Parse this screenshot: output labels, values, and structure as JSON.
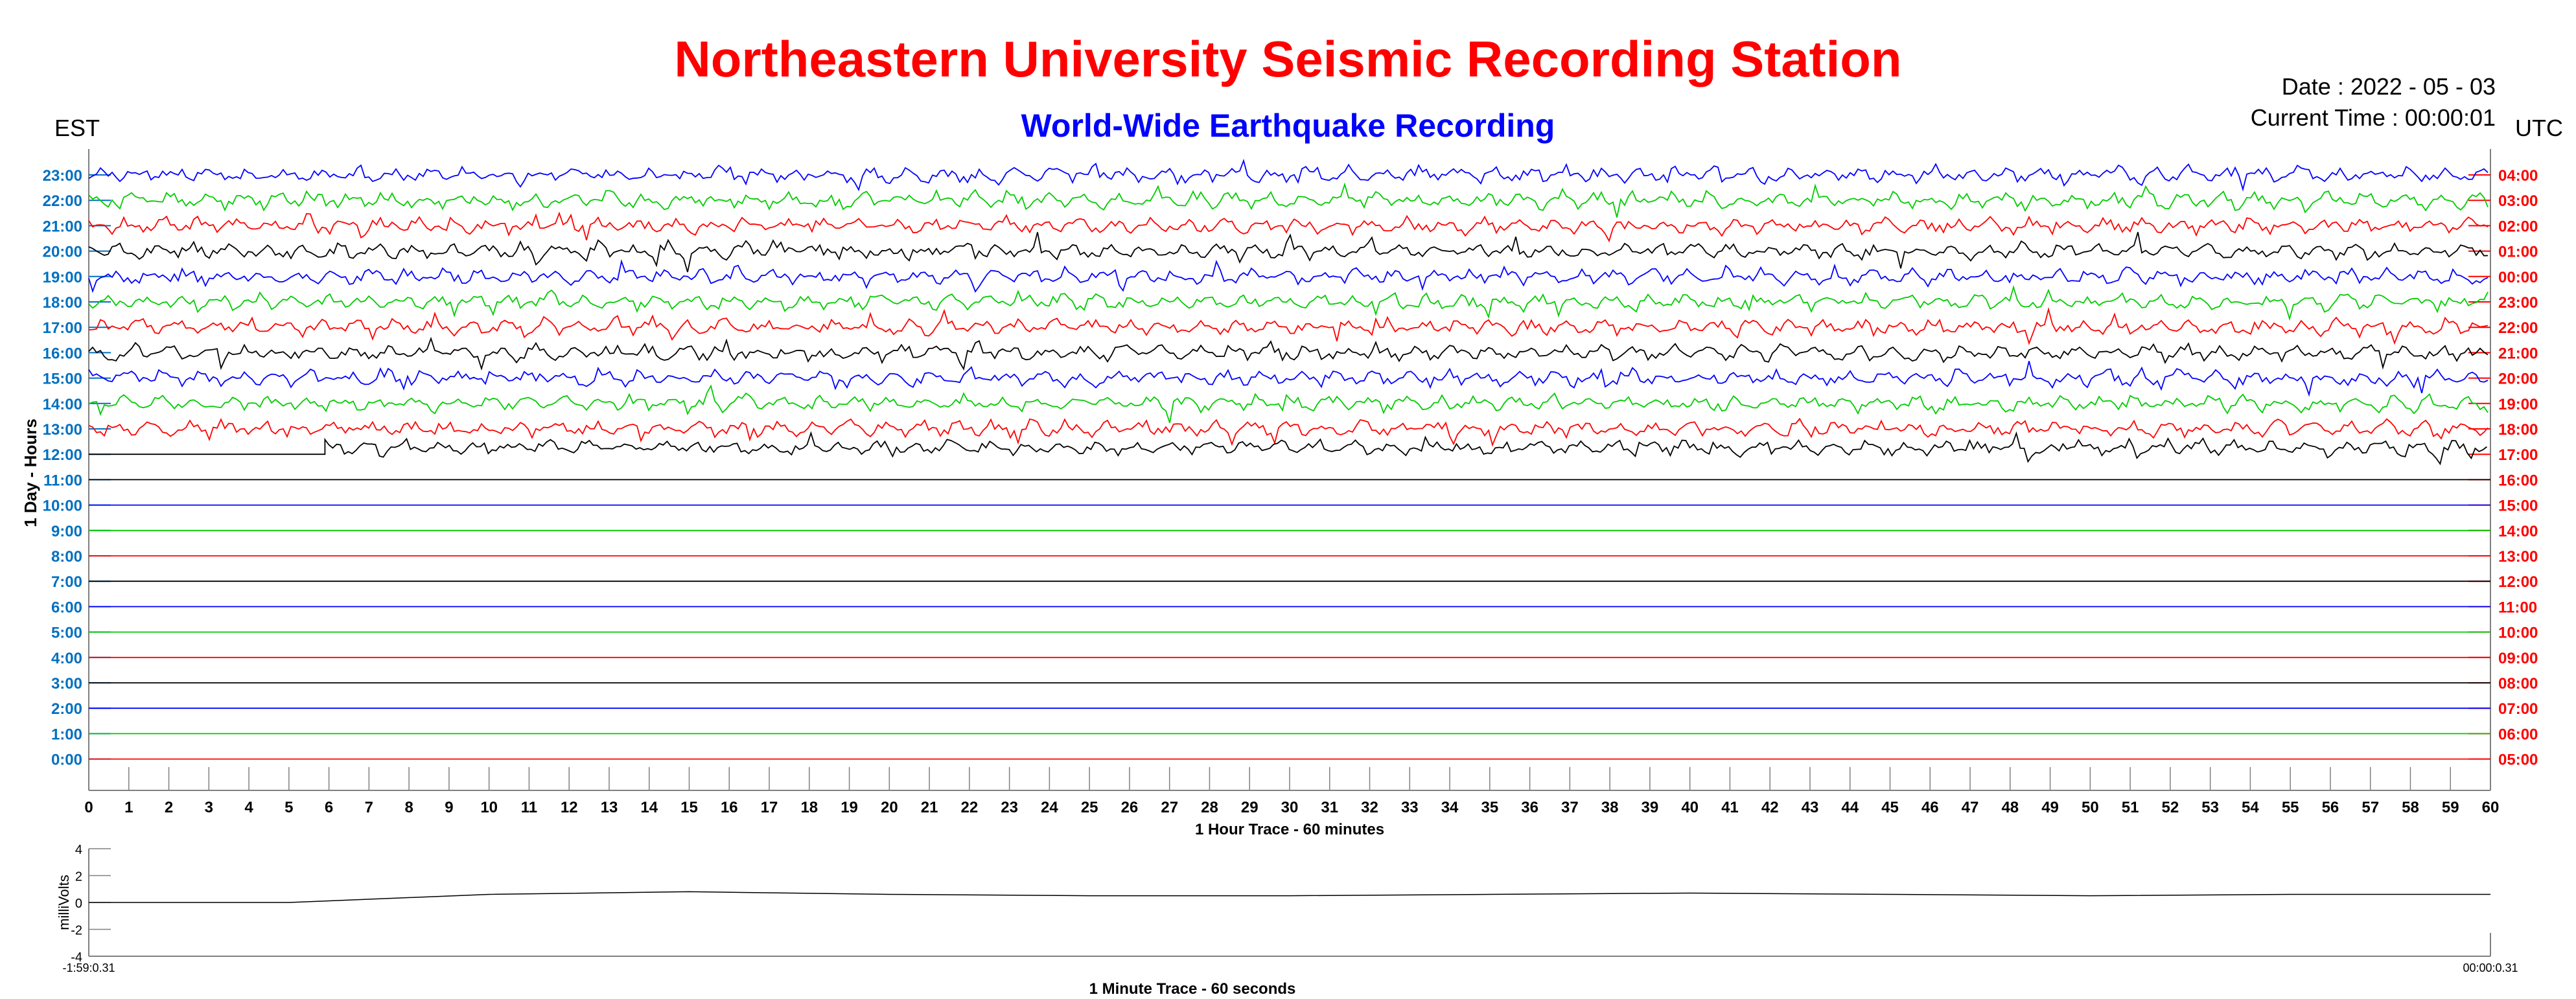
{
  "header": {
    "title": "Northeastern University Seismic Recording Station",
    "subtitle": "World-Wide Earthquake Recording",
    "date": "Date : 2022 - 05 - 03",
    "current_time": "Current Time : 00:00:01",
    "left_timezone": "EST",
    "right_timezone": "UTC"
  },
  "colors": {
    "title": "#ff0000",
    "subtitle": "#0000ff",
    "left_ticks": "#0070c0",
    "right_ticks": "#ff0000",
    "trace_cycle": [
      "#000000",
      "#ff0000",
      "#00cc00",
      "#0000ff"
    ]
  },
  "chart_data": [
    {
      "type": "line",
      "title": "",
      "ylabel": "1 Day - Hours",
      "xlabel": "1 Hour Trace - 60 minutes",
      "x_ticks": [
        "0",
        "1",
        "2",
        "3",
        "4",
        "5",
        "6",
        "7",
        "8",
        "9",
        "10",
        "11",
        "12",
        "13",
        "14",
        "15",
        "16",
        "17",
        "18",
        "19",
        "20",
        "21",
        "22",
        "23",
        "24",
        "25",
        "26",
        "27",
        "28",
        "29",
        "30",
        "31",
        "32",
        "33",
        "34",
        "35",
        "36",
        "37",
        "38",
        "39",
        "40",
        "41",
        "42",
        "43",
        "44",
        "45",
        "46",
        "47",
        "48",
        "49",
        "50",
        "51",
        "52",
        "53",
        "54",
        "55",
        "56",
        "57",
        "58",
        "59",
        "60"
      ],
      "xlim": [
        0,
        60
      ],
      "left_hours": [
        "23:00",
        "22:00",
        "21:00",
        "20:00",
        "19:00",
        "18:00",
        "17:00",
        "16:00",
        "15:00",
        "14:00",
        "13:00",
        "12:00",
        "11:00",
        "10:00",
        "9:00",
        "8:00",
        "7:00",
        "6:00",
        "5:00",
        "4:00",
        "3:00",
        "2:00",
        "1:00",
        "0:00"
      ],
      "right_hours": [
        "04:00",
        "03:00",
        "02:00",
        "01:00",
        "00:00",
        "23:00",
        "22:00",
        "21:00",
        "20:00",
        "19:00",
        "18:00",
        "17:00",
        "16:00",
        "15:00",
        "14:00",
        "13:00",
        "12:00",
        "11:00",
        "10:00",
        "09:00",
        "08:00",
        "07:00",
        "06:00",
        "05:00"
      ],
      "rows": [
        {
          "hour": "23:00",
          "color": "#0000ff",
          "active": true
        },
        {
          "hour": "22:00",
          "color": "#00cc00",
          "active": true
        },
        {
          "hour": "21:00",
          "color": "#ff0000",
          "active": true
        },
        {
          "hour": "20:00",
          "color": "#000000",
          "active": true
        },
        {
          "hour": "19:00",
          "color": "#0000ff",
          "active": true
        },
        {
          "hour": "18:00",
          "color": "#00cc00",
          "active": true
        },
        {
          "hour": "17:00",
          "color": "#ff0000",
          "active": true
        },
        {
          "hour": "16:00",
          "color": "#000000",
          "active": true
        },
        {
          "hour": "15:00",
          "color": "#0000ff",
          "active": true
        },
        {
          "hour": "14:00",
          "color": "#00cc00",
          "active": true
        },
        {
          "hour": "13:00",
          "color": "#ff0000",
          "active": true
        },
        {
          "hour": "12:00",
          "color": "#000000",
          "active": true,
          "signal_start_minute": 5.9
        },
        {
          "hour": "11:00",
          "color": "#000000",
          "active": false
        },
        {
          "hour": "10:00",
          "color": "#0000ff",
          "active": false
        },
        {
          "hour": "9:00",
          "color": "#00cc00",
          "active": false
        },
        {
          "hour": "8:00",
          "color": "#ff0000",
          "active": false
        },
        {
          "hour": "7:00",
          "color": "#000000",
          "active": false
        },
        {
          "hour": "6:00",
          "color": "#0000ff",
          "active": false
        },
        {
          "hour": "5:00",
          "color": "#00cc00",
          "active": false
        },
        {
          "hour": "4:00",
          "color": "#ff0000",
          "active": false
        },
        {
          "hour": "3:00",
          "color": "#000000",
          "active": false
        },
        {
          "hour": "2:00",
          "color": "#0000ff",
          "active": false
        },
        {
          "hour": "1:00",
          "color": "#00cc00",
          "active": false
        },
        {
          "hour": "0:00",
          "color": "#ff0000",
          "active": false
        }
      ]
    },
    {
      "type": "line",
      "title": "",
      "ylabel": "milliVolts",
      "xlabel": "1 Minute Trace  - 60 seconds",
      "ylim": [
        -4,
        4
      ],
      "y_ticks": [
        "4",
        "2",
        "0",
        "-2",
        "-4"
      ],
      "x_start_label": "-1:59:0.31",
      "x_end_label": "00:00:0.31",
      "series": [
        {
          "x": [
            0,
            5,
            10,
            15,
            20,
            25,
            30,
            35,
            40,
            45,
            50,
            55,
            60
          ],
          "y": [
            0.0,
            0.0,
            0.6,
            0.8,
            0.6,
            0.5,
            0.5,
            0.6,
            0.7,
            0.6,
            0.5,
            0.6,
            0.6
          ]
        }
      ]
    }
  ]
}
